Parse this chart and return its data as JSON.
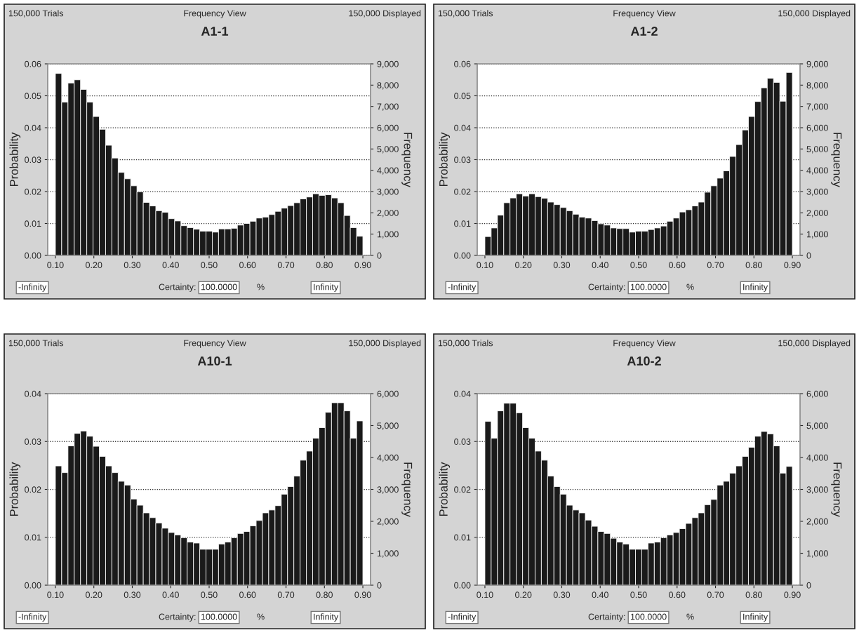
{
  "chart_data": [
    {
      "type": "histogram",
      "title": "A1-1",
      "ylabel": "Probability",
      "y2label": "Frequency",
      "color": "#1a1a1a",
      "grid": "y",
      "annotations": [
        "150,000 Trials",
        "Frequency View",
        "150,000 Displayed",
        "-Infinity",
        "Certainty:",
        "100.0000",
        "%",
        "Infinity"
      ],
      "bins": [
        0.1,
        0.1163,
        0.1327,
        0.149,
        0.1653,
        0.1816,
        0.198,
        0.2143,
        0.2306,
        0.2469,
        0.2633,
        0.2796,
        0.2959,
        0.3122,
        0.3286,
        0.3449,
        0.3612,
        0.3776,
        0.3939,
        0.4102,
        0.4265,
        0.4429,
        0.4592,
        0.4755,
        0.4918,
        0.5082,
        0.5245,
        0.5408,
        0.5571,
        0.5735,
        0.5898,
        0.6061,
        0.6224,
        0.6388,
        0.6551,
        0.6714,
        0.6878,
        0.7041,
        0.7204,
        0.7367,
        0.7531,
        0.7694,
        0.7857,
        0.802,
        0.8184,
        0.8347,
        0.851,
        0.8673,
        0.8837,
        0.9
      ],
      "values": [
        0.057,
        0.048,
        0.054,
        0.055,
        0.052,
        0.048,
        0.0435,
        0.0395,
        0.0345,
        0.0305,
        0.026,
        0.024,
        0.0218,
        0.0199,
        0.0166,
        0.0155,
        0.014,
        0.0135,
        0.0115,
        0.0108,
        0.0093,
        0.0087,
        0.0082,
        0.0076,
        0.0076,
        0.0073,
        0.0083,
        0.0083,
        0.0085,
        0.0095,
        0.01,
        0.0107,
        0.0117,
        0.012,
        0.0128,
        0.0138,
        0.0148,
        0.0156,
        0.0165,
        0.0177,
        0.0183,
        0.0193,
        0.0188,
        0.019,
        0.018,
        0.0165,
        0.0125,
        0.0087,
        0.006
      ],
      "xlim": [
        0.08,
        0.92
      ],
      "xticks": [
        {
          "value": 0.1,
          "label": "0.10"
        },
        {
          "value": 0.2,
          "label": "0.20"
        },
        {
          "value": 0.3,
          "label": "0.30"
        },
        {
          "value": 0.4,
          "label": "0.40"
        },
        {
          "value": 0.5,
          "label": "0.50"
        },
        {
          "value": 0.6,
          "label": "0.60"
        },
        {
          "value": 0.7,
          "label": "0.70"
        },
        {
          "value": 0.8,
          "label": "0.80"
        },
        {
          "value": 0.9,
          "label": "0.90"
        }
      ],
      "ylim": [
        0,
        0.06
      ],
      "yticks": [
        {
          "value": 0,
          "label": "0.00"
        },
        {
          "value": 0.01,
          "label": "0.01"
        },
        {
          "value": 0.02,
          "label": "0.02"
        },
        {
          "value": 0.03,
          "label": "0.03"
        },
        {
          "value": 0.04,
          "label": "0.04"
        },
        {
          "value": 0.05,
          "label": "0.05"
        },
        {
          "value": 0.06,
          "label": "0.06"
        }
      ],
      "y2lim": [
        0,
        9000
      ],
      "y2ticks": [
        0,
        {
          "value": 1000,
          "label": "1,000"
        },
        {
          "value": 2000,
          "label": "2,000"
        },
        {
          "value": 3000,
          "label": "3,000"
        },
        {
          "value": 4000,
          "label": "4,000"
        },
        {
          "value": 5000,
          "label": "5,000"
        },
        {
          "value": 6000,
          "label": "6,000"
        },
        {
          "value": 7000,
          "label": "7,000"
        },
        {
          "value": 8000,
          "label": "8,000"
        },
        {
          "value": 9000,
          "label": "9,000"
        }
      ]
    },
    {
      "type": "histogram",
      "title": "A1-2",
      "ylabel": "Probability",
      "y2label": "Frequency",
      "color": "#1a1a1a",
      "grid": "y",
      "annotations": [
        "150,000 Trials",
        "Frequency View",
        "150,000 Displayed",
        "-Infinity",
        "Certainty:",
        "100.0000",
        "%",
        "Infinity"
      ],
      "bins": [
        0.1,
        0.1163,
        0.1327,
        0.149,
        0.1653,
        0.1816,
        0.198,
        0.2143,
        0.2306,
        0.2469,
        0.2633,
        0.2796,
        0.2959,
        0.3122,
        0.3286,
        0.3449,
        0.3612,
        0.3776,
        0.3939,
        0.4102,
        0.4265,
        0.4429,
        0.4592,
        0.4755,
        0.4918,
        0.5082,
        0.5245,
        0.5408,
        0.5571,
        0.5735,
        0.5898,
        0.6061,
        0.6224,
        0.6388,
        0.6551,
        0.6714,
        0.6878,
        0.7041,
        0.7204,
        0.7367,
        0.7531,
        0.7694,
        0.7857,
        0.802,
        0.8184,
        0.8347,
        0.851,
        0.8673,
        0.8837,
        0.9
      ],
      "values": [
        0.0059,
        0.0086,
        0.0126,
        0.0165,
        0.018,
        0.0193,
        0.0186,
        0.0193,
        0.0184,
        0.0179,
        0.0167,
        0.0159,
        0.015,
        0.014,
        0.0129,
        0.012,
        0.0117,
        0.0109,
        0.0099,
        0.0095,
        0.0086,
        0.0084,
        0.0084,
        0.0073,
        0.0076,
        0.0076,
        0.0081,
        0.0086,
        0.0092,
        0.0107,
        0.0117,
        0.0136,
        0.0143,
        0.0155,
        0.0167,
        0.0198,
        0.0218,
        0.0242,
        0.0265,
        0.031,
        0.0347,
        0.0393,
        0.0435,
        0.0482,
        0.0525,
        0.0555,
        0.0542,
        0.0483,
        0.0573
      ],
      "xlim": [
        0.08,
        0.92
      ],
      "xticks": [
        {
          "value": 0.1,
          "label": "0.10"
        },
        {
          "value": 0.2,
          "label": "0.20"
        },
        {
          "value": 0.3,
          "label": "0.30"
        },
        {
          "value": 0.4,
          "label": "0.40"
        },
        {
          "value": 0.5,
          "label": "0.50"
        },
        {
          "value": 0.6,
          "label": "0.60"
        },
        {
          "value": 0.7,
          "label": "0.70"
        },
        {
          "value": 0.8,
          "label": "0.80"
        },
        {
          "value": 0.9,
          "label": "0.90"
        }
      ],
      "ylim": [
        0,
        0.06
      ],
      "yticks": [
        {
          "value": 0,
          "label": "0.00"
        },
        {
          "value": 0.01,
          "label": "0.01"
        },
        {
          "value": 0.02,
          "label": "0.02"
        },
        {
          "value": 0.03,
          "label": "0.03"
        },
        {
          "value": 0.04,
          "label": "0.04"
        },
        {
          "value": 0.05,
          "label": "0.05"
        },
        {
          "value": 0.06,
          "label": "0.06"
        }
      ],
      "y2lim": [
        0,
        9000
      ],
      "y2ticks": [
        0,
        {
          "value": 1000,
          "label": "1,000"
        },
        {
          "value": 2000,
          "label": "2,000"
        },
        {
          "value": 3000,
          "label": "3,000"
        },
        {
          "value": 4000,
          "label": "4,000"
        },
        {
          "value": 5000,
          "label": "5,000"
        },
        {
          "value": 6000,
          "label": "6,000"
        },
        {
          "value": 7000,
          "label": "7,000"
        },
        {
          "value": 8000,
          "label": "8,000"
        },
        {
          "value": 9000,
          "label": "9,000"
        }
      ]
    },
    {
      "type": "histogram",
      "title": "A10-1",
      "ylabel": "Probability",
      "y2label": "Frequency",
      "color": "#1a1a1a",
      "grid": "y",
      "annotations": [
        "150,000 Trials",
        "Frequency View",
        "150,000 Displayed",
        "-Infinity",
        "Certainty:",
        "100.0000",
        "%",
        "Infinity"
      ],
      "bins": [
        0.1,
        0.1163,
        0.1327,
        0.149,
        0.1653,
        0.1816,
        0.198,
        0.2143,
        0.2306,
        0.2469,
        0.2633,
        0.2796,
        0.2959,
        0.3122,
        0.3286,
        0.3449,
        0.3612,
        0.3776,
        0.3939,
        0.4102,
        0.4265,
        0.4429,
        0.4592,
        0.4755,
        0.4918,
        0.5082,
        0.5245,
        0.5408,
        0.5571,
        0.5735,
        0.5898,
        0.6061,
        0.6224,
        0.6388,
        0.6551,
        0.6714,
        0.6878,
        0.7041,
        0.7204,
        0.7367,
        0.7531,
        0.7694,
        0.7857,
        0.802,
        0.8184,
        0.8347,
        0.851,
        0.8673,
        0.8837,
        0.9
      ],
      "values": [
        0.0249,
        0.0235,
        0.0291,
        0.0317,
        0.0322,
        0.0311,
        0.029,
        0.0269,
        0.0249,
        0.0235,
        0.0217,
        0.0209,
        0.018,
        0.0167,
        0.0151,
        0.0141,
        0.013,
        0.0119,
        0.011,
        0.0105,
        0.0099,
        0.009,
        0.0088,
        0.0075,
        0.0075,
        0.0075,
        0.0086,
        0.009,
        0.0099,
        0.0108,
        0.0112,
        0.0124,
        0.0135,
        0.0151,
        0.0157,
        0.0166,
        0.019,
        0.0206,
        0.0228,
        0.0261,
        0.028,
        0.0307,
        0.0329,
        0.0361,
        0.0381,
        0.0381,
        0.0364,
        0.0307,
        0.0343
      ],
      "xlim": [
        0.08,
        0.92
      ],
      "xticks": [
        {
          "value": 0.1,
          "label": "0.10"
        },
        {
          "value": 0.2,
          "label": "0.20"
        },
        {
          "value": 0.3,
          "label": "0.30"
        },
        {
          "value": 0.4,
          "label": "0.40"
        },
        {
          "value": 0.5,
          "label": "0.50"
        },
        {
          "value": 0.6,
          "label": "0.60"
        },
        {
          "value": 0.7,
          "label": "0.70"
        },
        {
          "value": 0.8,
          "label": "0.80"
        },
        {
          "value": 0.9,
          "label": "0.90"
        }
      ],
      "ylim": [
        0,
        0.04
      ],
      "yticks": [
        {
          "value": 0,
          "label": "0.00"
        },
        {
          "value": 0.01,
          "label": "0.01"
        },
        {
          "value": 0.02,
          "label": "0.02"
        },
        {
          "value": 0.03,
          "label": "0.03"
        },
        {
          "value": 0.04,
          "label": "0.04"
        }
      ],
      "y2lim": [
        0,
        6000
      ],
      "y2ticks": [
        0,
        {
          "value": 1000,
          "label": "1,000"
        },
        {
          "value": 2000,
          "label": "2,000"
        },
        {
          "value": 3000,
          "label": "3,000"
        },
        {
          "value": 4000,
          "label": "4,000"
        },
        {
          "value": 5000,
          "label": "5,000"
        },
        {
          "value": 6000,
          "label": "6,000"
        }
      ]
    },
    {
      "type": "histogram",
      "title": "A10-2",
      "ylabel": "Probability",
      "y2label": "Frequency",
      "color": "#1a1a1a",
      "grid": "y",
      "annotations": [
        "150,000 Trials",
        "Frequency View",
        "150,000 Displayed",
        "-Infinity",
        "Certainty:",
        "100.0000",
        "%",
        "Infinity"
      ],
      "bins": [
        0.1,
        0.1163,
        0.1327,
        0.149,
        0.1653,
        0.1816,
        0.198,
        0.2143,
        0.2306,
        0.2469,
        0.2633,
        0.2796,
        0.2959,
        0.3122,
        0.3286,
        0.3449,
        0.3612,
        0.3776,
        0.3939,
        0.4102,
        0.4265,
        0.4429,
        0.4592,
        0.4755,
        0.4918,
        0.5082,
        0.5245,
        0.5408,
        0.5571,
        0.5735,
        0.5898,
        0.6061,
        0.6224,
        0.6388,
        0.6551,
        0.6714,
        0.6878,
        0.7041,
        0.7204,
        0.7367,
        0.7531,
        0.7694,
        0.7857,
        0.802,
        0.8184,
        0.8347,
        0.851,
        0.8673,
        0.8837,
        0.9
      ],
      "values": [
        0.0342,
        0.0307,
        0.0364,
        0.038,
        0.038,
        0.036,
        0.0329,
        0.0307,
        0.028,
        0.0261,
        0.0228,
        0.0206,
        0.019,
        0.0167,
        0.0157,
        0.0151,
        0.0136,
        0.0123,
        0.0112,
        0.0108,
        0.0098,
        0.009,
        0.0086,
        0.0075,
        0.0075,
        0.0075,
        0.0088,
        0.009,
        0.0099,
        0.0105,
        0.011,
        0.0118,
        0.0129,
        0.0141,
        0.0151,
        0.0168,
        0.0179,
        0.0209,
        0.0217,
        0.0234,
        0.0249,
        0.0269,
        0.0288,
        0.0311,
        0.0321,
        0.0316,
        0.0291,
        0.0234,
        0.0248
      ],
      "xlim": [
        0.08,
        0.92
      ],
      "xticks": [
        {
          "value": 0.1,
          "label": "0.10"
        },
        {
          "value": 0.2,
          "label": "0.20"
        },
        {
          "value": 0.3,
          "label": "0.30"
        },
        {
          "value": 0.4,
          "label": "0.40"
        },
        {
          "value": 0.5,
          "label": "0.50"
        },
        {
          "value": 0.6,
          "label": "0.60"
        },
        {
          "value": 0.7,
          "label": "0.70"
        },
        {
          "value": 0.8,
          "label": "0.80"
        },
        {
          "value": 0.9,
          "label": "0.90"
        }
      ],
      "ylim": [
        0,
        0.04
      ],
      "yticks": [
        {
          "value": 0,
          "label": "0.00"
        },
        {
          "value": 0.01,
          "label": "0.01"
        },
        {
          "value": 0.02,
          "label": "0.02"
        },
        {
          "value": 0.03,
          "label": "0.03"
        },
        {
          "value": 0.04,
          "label": "0.04"
        }
      ],
      "y2lim": [
        0,
        6000
      ],
      "y2ticks": [
        0,
        {
          "value": 1000,
          "label": "1,000"
        },
        {
          "value": 2000,
          "label": "2,000"
        },
        {
          "value": 3000,
          "label": "3,000"
        },
        {
          "value": 4000,
          "label": "4,000"
        },
        {
          "value": 5000,
          "label": "5,000"
        },
        {
          "value": 6000,
          "label": "6,000"
        }
      ]
    }
  ]
}
